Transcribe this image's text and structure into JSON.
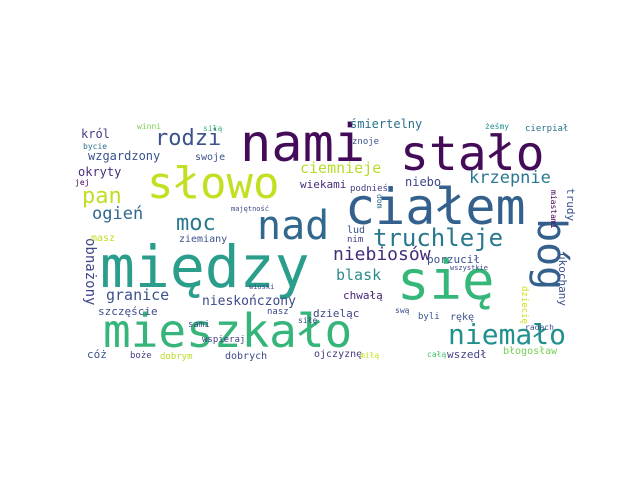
{
  "words": [
    {
      "id": "miedzy",
      "text": "między"
    },
    {
      "id": "mieszkalo",
      "text": "mieszkało"
    },
    {
      "id": "nami",
      "text": "nami"
    },
    {
      "id": "stalo",
      "text": "stało"
    },
    {
      "id": "slowo",
      "text": "słowo"
    },
    {
      "id": "cialem",
      "text": "ciałem"
    },
    {
      "id": "sie",
      "text": "się"
    },
    {
      "id": "nad",
      "text": "nad"
    },
    {
      "id": "bog",
      "text": "bóg"
    },
    {
      "id": "niemalo",
      "text": "niemało"
    },
    {
      "id": "truchleje",
      "text": "truchleje"
    },
    {
      "id": "rodzi",
      "text": "rodzi"
    },
    {
      "id": "moc",
      "text": "moc"
    },
    {
      "id": "pan",
      "text": "pan"
    },
    {
      "id": "niebiosow",
      "text": "niebiosów"
    },
    {
      "id": "krzepnie",
      "text": "krzepnie"
    },
    {
      "id": "ogien",
      "text": "ogień"
    },
    {
      "id": "ciemnieje",
      "text": "ciemnieje"
    },
    {
      "id": "blask",
      "text": "blask"
    },
    {
      "id": "granice",
      "text": "granice"
    },
    {
      "id": "nieskonczony",
      "text": "nieskończony"
    },
    {
      "id": "obnazony",
      "text": "obnażony"
    },
    {
      "id": "smiertelny",
      "text": "śmiertelny"
    },
    {
      "id": "krol",
      "text": "król"
    },
    {
      "id": "wzgardzony",
      "text": "wzgardzony"
    },
    {
      "id": "okryty",
      "text": "okryty"
    },
    {
      "id": "wiekami",
      "text": "wiekami"
    },
    {
      "id": "niebo",
      "text": "niebo"
    },
    {
      "id": "chwala",
      "text": "chwałą"
    },
    {
      "id": "porzucil",
      "text": "porzucił"
    },
    {
      "id": "szczescie",
      "text": "szczęście"
    },
    {
      "id": "dzielac",
      "text": "dzieląc"
    },
    {
      "id": "ukochany",
      "text": "ukochany"
    },
    {
      "id": "blogoslaw",
      "text": "błogosław"
    },
    {
      "id": "wszedl",
      "text": "wszedł"
    },
    {
      "id": "ojczyzne",
      "text": "ojczyznę"
    },
    {
      "id": "dobrych",
      "text": "dobrych"
    },
    {
      "id": "coz",
      "text": "cóż"
    },
    {
      "id": "boze",
      "text": "boże"
    },
    {
      "id": "dobrym",
      "text": "dobrym"
    },
    {
      "id": "mila",
      "text": "miłą"
    },
    {
      "id": "cala",
      "text": "całą"
    },
    {
      "id": "winni",
      "text": "winni"
    },
    {
      "id": "sila",
      "text": "siłą"
    },
    {
      "id": "bycie",
      "text": "bycie"
    },
    {
      "id": "swoje",
      "text": "swoje"
    },
    {
      "id": "jej",
      "text": "jej"
    },
    {
      "id": "zeschmy",
      "text": "żeśmy"
    },
    {
      "id": "cierpial",
      "text": "cierpiał"
    },
    {
      "id": "znoje",
      "text": "znoje"
    },
    {
      "id": "podnies",
      "text": "podnieś"
    },
    {
      "id": "wspieraj",
      "text": "wspieraj"
    },
    {
      "id": "majetnosc",
      "text": "majętność"
    },
    {
      "id": "dom",
      "text": "dom"
    },
    {
      "id": "masz",
      "text": "masz"
    },
    {
      "id": "ziemiany",
      "text": "ziemiany"
    },
    {
      "id": "sami",
      "text": "sami"
    },
    {
      "id": "lud",
      "text": "lud"
    },
    {
      "id": "nim",
      "text": "nim"
    },
    {
      "id": "wioski",
      "text": "wioski"
    },
    {
      "id": "nasz",
      "text": "nasz"
    },
    {
      "id": "sile",
      "text": "siłę"
    },
    {
      "id": "swa",
      "text": "swą"
    },
    {
      "id": "byli",
      "text": "byli"
    },
    {
      "id": "reke",
      "text": "rękę"
    },
    {
      "id": "wszystkie",
      "text": "wszystkie"
    },
    {
      "id": "miastami",
      "text": "miastami"
    },
    {
      "id": "trudy",
      "text": "trudy"
    },
    {
      "id": "dziecie",
      "text": "dziecię"
    },
    {
      "id": "radach",
      "text": "radach"
    }
  ]
}
